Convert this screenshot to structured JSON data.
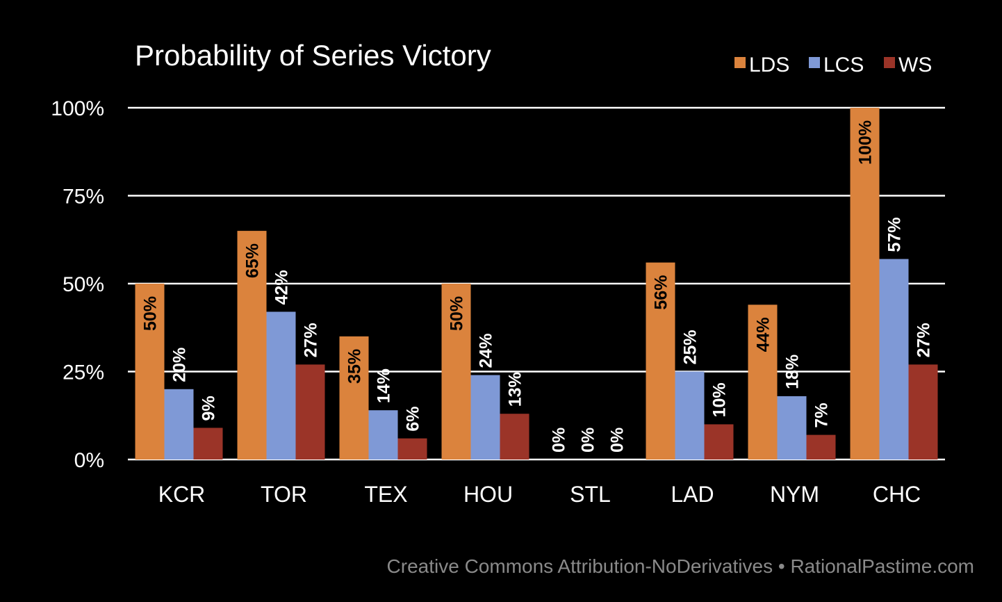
{
  "chart_data": {
    "type": "bar",
    "title": "Probability of Series Victory",
    "xlabel": "",
    "ylabel": "",
    "ylim": [
      0,
      100
    ],
    "yticks": [
      0,
      25,
      50,
      75,
      100
    ],
    "ytick_labels": [
      "0%",
      "25%",
      "50%",
      "75%",
      "100%"
    ],
    "grid": true,
    "legend_position": "top-right",
    "categories": [
      "KCR",
      "TOR",
      "TEX",
      "HOU",
      "STL",
      "LAD",
      "NYM",
      "CHC"
    ],
    "series": [
      {
        "name": "LDS",
        "color": "#DB833D",
        "values": [
          50,
          65,
          35,
          50,
          0,
          56,
          44,
          100
        ],
        "labels": [
          "50%",
          "65%",
          "35%",
          "50%",
          "0%",
          "56%",
          "44%",
          "100%"
        ]
      },
      {
        "name": "LCS",
        "color": "#7F99D6",
        "values": [
          20,
          42,
          14,
          24,
          0,
          25,
          18,
          57
        ],
        "labels": [
          "20%",
          "42%",
          "14%",
          "24%",
          "0%",
          "25%",
          "18%",
          "57%"
        ]
      },
      {
        "name": "WS",
        "color": "#9B3428",
        "values": [
          9,
          27,
          6,
          13,
          0,
          10,
          7,
          27
        ],
        "labels": [
          "9%",
          "27%",
          "6%",
          "13%",
          "0%",
          "10%",
          "7%",
          "27%"
        ]
      }
    ]
  },
  "footer": "Creative Commons Attribution-NoDerivatives • RationalPastime.com"
}
